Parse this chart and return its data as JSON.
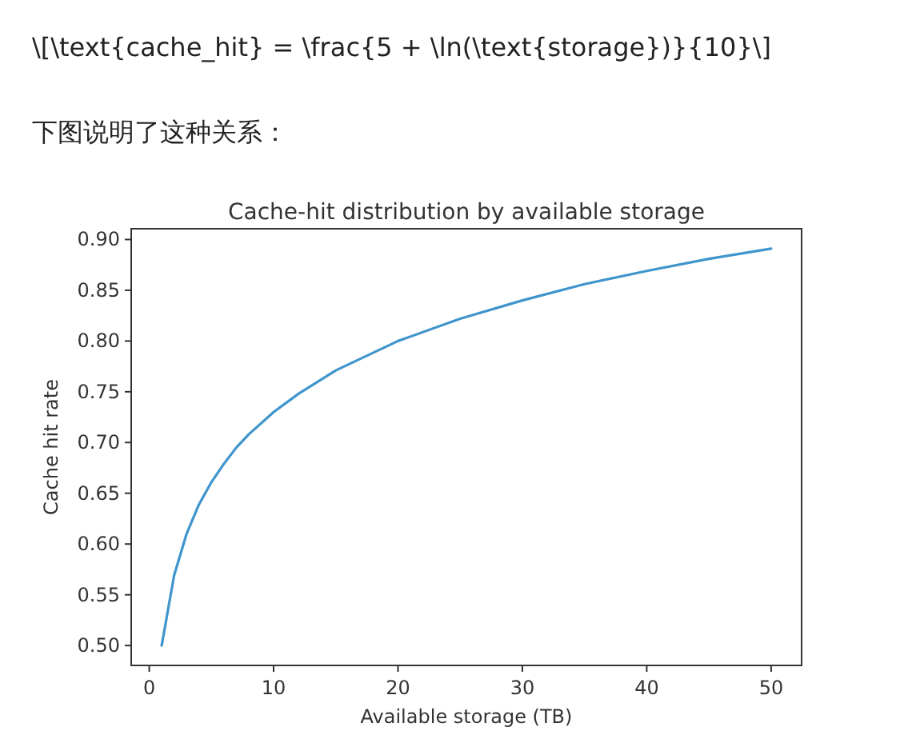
{
  "chart_data": {
    "type": "line",
    "title": "Cache-hit distribution by available storage",
    "xlabel": "Available storage (TB)",
    "ylabel": "Cache hit rate",
    "annotations": [
      "\\[\\text{cache_hit} = \\frac{5 + \\ln(\\text{storage})}{10}\\]",
      "下图说明了这种关系："
    ],
    "x": [
      1,
      2,
      3,
      4,
      5,
      6,
      7,
      8,
      10,
      12,
      15,
      20,
      25,
      30,
      35,
      40,
      45,
      50
    ],
    "values": [
      0.5,
      0.569,
      0.61,
      0.639,
      0.661,
      0.679,
      0.695,
      0.708,
      0.73,
      0.748,
      0.771,
      0.8,
      0.822,
      0.84,
      0.856,
      0.869,
      0.881,
      0.891
    ],
    "color": "#3f95cc",
    "xlim": [
      -1.45,
      52.45
    ],
    "ylim": [
      0.4804,
      0.9106
    ],
    "xticks": [
      0,
      10,
      20,
      30,
      40,
      50
    ],
    "yticks": [
      {
        "value": 0.5,
        "label": "0.50"
      },
      {
        "value": 0.55,
        "label": "0.55"
      },
      {
        "value": 0.6,
        "label": "0.60"
      },
      {
        "value": 0.65,
        "label": "0.65"
      },
      {
        "value": 0.7,
        "label": "0.70"
      },
      {
        "value": 0.75,
        "label": "0.75"
      },
      {
        "value": 0.8,
        "label": "0.80"
      },
      {
        "value": 0.85,
        "label": "0.85"
      },
      {
        "value": 0.9,
        "label": "0.90"
      }
    ]
  }
}
